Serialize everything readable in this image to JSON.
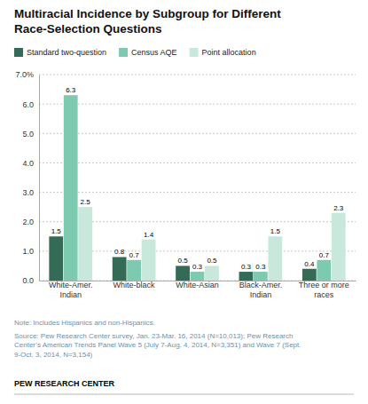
{
  "chart_data": {
    "type": "bar",
    "title": "Multiracial Incidence by Subgroup for Different\nRace-Selection Questions",
    "categories": [
      "White-Amer.\nIndian",
      "White-black",
      "White-Asian",
      "Black-Amer.\nIndian",
      "Three or more\nraces"
    ],
    "series": [
      {
        "name": "Standard two-question",
        "color": "#336b57",
        "values": [
          1.5,
          0.8,
          0.5,
          0.3,
          0.4
        ]
      },
      {
        "name": "Census AQE",
        "color": "#7ecab0",
        "values": [
          6.3,
          0.7,
          0.3,
          0.3,
          0.7
        ]
      },
      {
        "name": "Point allocation",
        "color": "#c8e8dc",
        "values": [
          2.5,
          1.4,
          0.5,
          1.5,
          2.3
        ]
      }
    ],
    "ylim": [
      0,
      7.0
    ],
    "yticks": [
      {
        "value": 0.0,
        "label": "0.0"
      },
      {
        "value": 1.0,
        "label": "1.0"
      },
      {
        "value": 2.0,
        "label": "2.0"
      },
      {
        "value": 3.0,
        "label": "3.0"
      },
      {
        "value": 4.0,
        "label": "4.0"
      },
      {
        "value": 5.0,
        "label": "5.0"
      },
      {
        "value": 6.0,
        "label": "6.0"
      },
      {
        "value": 7.0,
        "label": "7.0%"
      }
    ],
    "grid": true,
    "legend": "top",
    "data_labels": true,
    "annotations": [
      "Note: Includes Hispanics and non-Hispanics.",
      "Source: Pew Research Center survey, Jan. 23-Mar. 16, 2014 (N=10,013);  Pew Research\nCenter’s American Trends Panel Wave 5 (July 7-Aug. 4, 2014, N=3,351) and Wave 7 (Sept.\n9-Oct. 3, 2014, N=3,154)",
      "PEW RESEARCH CENTER"
    ]
  }
}
